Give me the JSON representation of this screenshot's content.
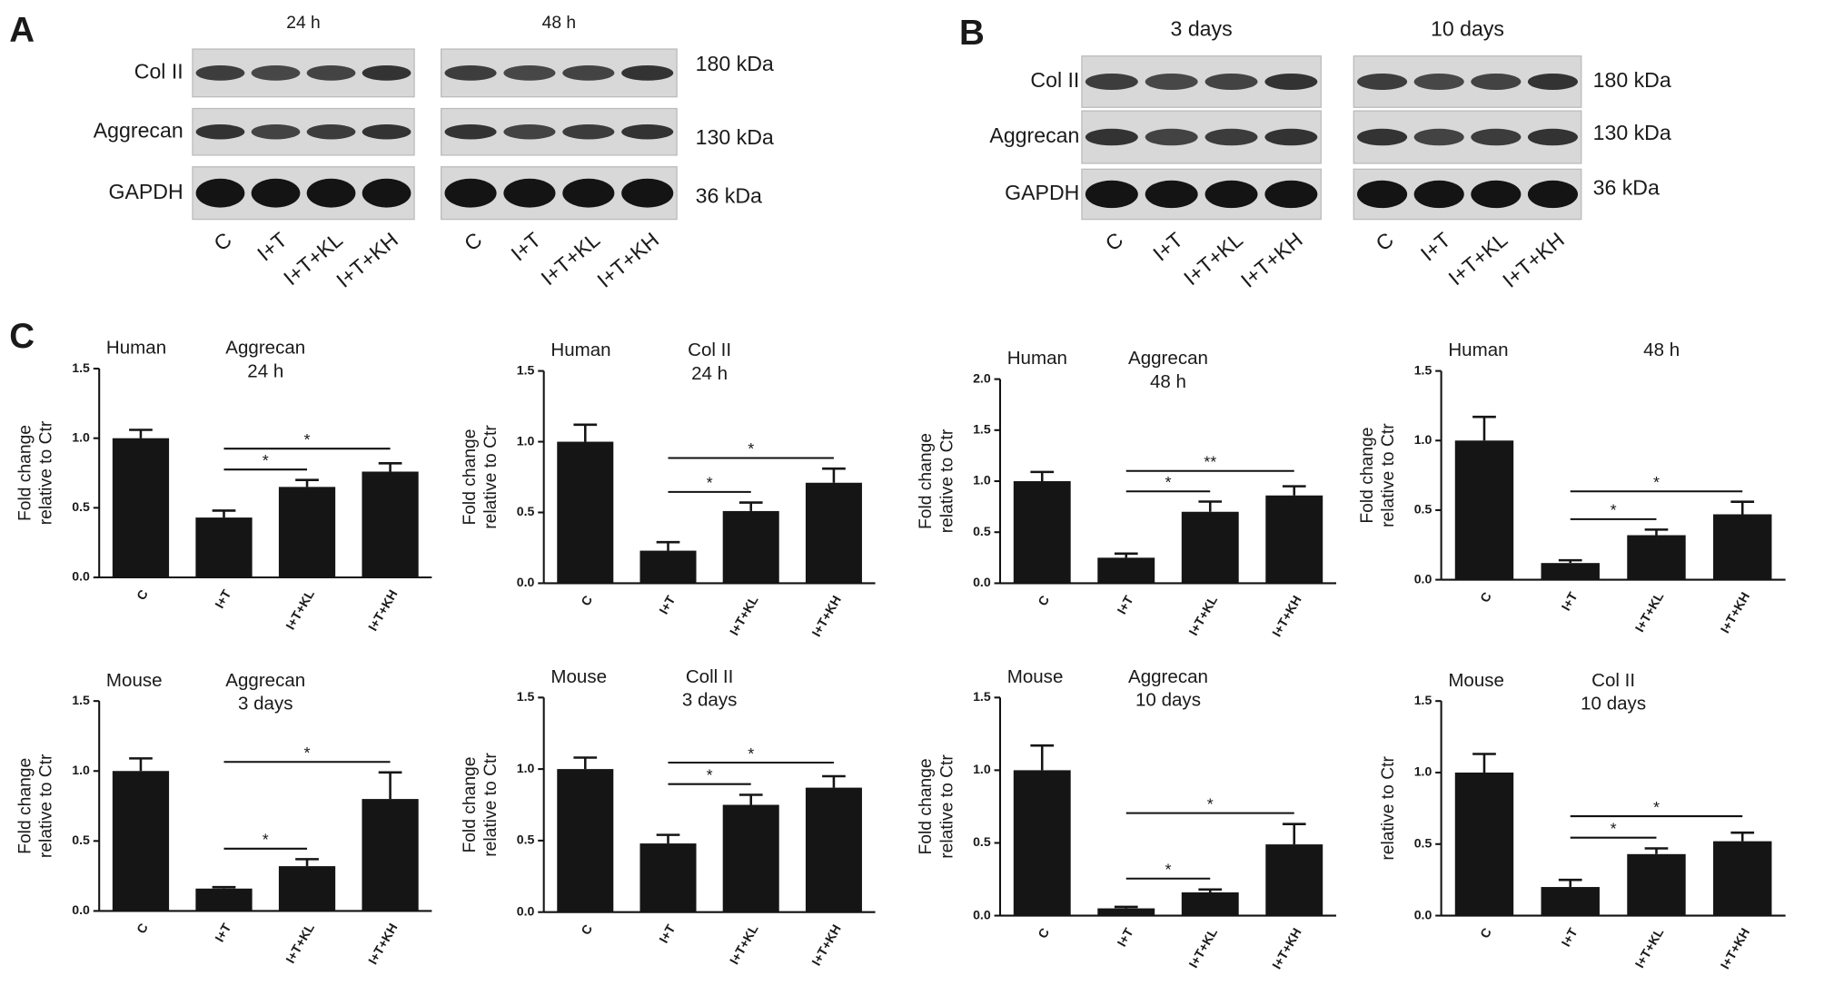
{
  "blots": [
    {
      "label": "A",
      "rows": [
        "Col II",
        "Aggrecan",
        "GAPDH"
      ],
      "sizes": [
        "180 kDa",
        "130 kDa",
        "36 kDa"
      ],
      "groups": [
        {
          "title": "24 h",
          "lanes": [
            "C",
            "I+T",
            "I+T+KL",
            "I+T+KH"
          ]
        },
        {
          "title": "48 h",
          "lanes": [
            "C",
            "I+T",
            "I+T+KL",
            "I+T+KH"
          ]
        }
      ]
    },
    {
      "label": "B",
      "rows": [
        "Col II",
        "Aggrecan",
        "GAPDH"
      ],
      "sizes": [
        "180 kDa",
        "130 kDa",
        "36 kDa"
      ],
      "groups": [
        {
          "title": "3 days",
          "lanes": [
            "C",
            "I+T",
            "I+T+KL",
            "I+T+KH"
          ]
        },
        {
          "title": "10 days",
          "lanes": [
            "C",
            "I+T",
            "I+T+KL",
            "I+T+KH"
          ]
        }
      ]
    }
  ],
  "charts_label": "C",
  "chart_data": [
    {
      "type": "bar",
      "annotation": "Human",
      "title": "Aggrecan",
      "subtitle": "24 h",
      "ylabel": [
        "Fold change",
        "relative to Ctr"
      ],
      "categories": [
        "C",
        "I+T",
        "I+T+KL",
        "I+T+KH"
      ],
      "values": [
        1.0,
        0.43,
        0.65,
        0.76
      ],
      "errors": [
        0.06,
        0.05,
        0.05,
        0.06
      ],
      "color": "#151515",
      "ylim": [
        0,
        1.5
      ],
      "yticks": [
        {
          "value": 0,
          "label": "0.0"
        },
        0.5,
        {
          "value": 1,
          "label": "1.0"
        },
        1.5
      ],
      "significance": [
        {
          "text": "*",
          "between": [
            "I+T",
            "I+T+KL"
          ]
        },
        {
          "text": "*",
          "between": [
            "I+T",
            "I+T+KH"
          ]
        }
      ]
    },
    {
      "type": "bar",
      "annotation": "Human",
      "title": "Col II",
      "subtitle": "24 h",
      "ylabel": [
        "Fold change",
        "relative to Ctr"
      ],
      "categories": [
        "C",
        "I+T",
        "I+T+KL",
        "I+T+KH"
      ],
      "values": [
        1.0,
        0.23,
        0.51,
        0.71
      ],
      "errors": [
        0.12,
        0.06,
        0.06,
        0.1
      ],
      "color": "#151515",
      "ylim": [
        0,
        1.5
      ],
      "yticks": [
        {
          "value": 0,
          "label": "0.0"
        },
        0.5,
        {
          "value": 1,
          "label": "1.0"
        },
        1.5
      ],
      "significance": [
        {
          "text": "*",
          "between": [
            "I+T",
            "I+T+KL"
          ]
        },
        {
          "text": "*",
          "between": [
            "I+T",
            "I+T+KH"
          ]
        }
      ]
    },
    {
      "type": "bar",
      "annotation": "Human",
      "title": "Aggrecan",
      "subtitle": "48 h",
      "ylabel": [
        "Fold change",
        "relative to Ctr"
      ],
      "categories": [
        "C",
        "I+T",
        "I+T+KL",
        "I+T+KH"
      ],
      "values": [
        1.0,
        0.25,
        0.7,
        0.86
      ],
      "errors": [
        0.09,
        0.04,
        0.1,
        0.09
      ],
      "color": "#151515",
      "ylim": [
        0,
        2
      ],
      "yticks": [
        {
          "value": 0,
          "label": "0.0"
        },
        0.5,
        {
          "value": 1,
          "label": "1.0"
        },
        1.5,
        {
          "value": 2,
          "label": "2.0"
        }
      ],
      "significance": [
        {
          "text": "*",
          "between": [
            "I+T",
            "I+T+KL"
          ]
        },
        {
          "text": "**",
          "between": [
            "I+T",
            "I+T+KH"
          ]
        }
      ]
    },
    {
      "type": "bar",
      "annotation": "Human",
      "title": "48 h",
      "ylabel": [
        "Fold change",
        "relative to Ctr"
      ],
      "categories": [
        "C",
        "I+T",
        "I+T+KL",
        "I+T+KH"
      ],
      "values": [
        1.0,
        0.12,
        0.32,
        0.47
      ],
      "errors": [
        0.17,
        0.02,
        0.04,
        0.09
      ],
      "color": "#151515",
      "ylim": [
        0,
        1.5
      ],
      "yticks": [
        {
          "value": 0,
          "label": "0.0"
        },
        0.5,
        {
          "value": 1,
          "label": "1.0"
        },
        1.5
      ],
      "significance": [
        {
          "text": "*",
          "between": [
            "I+T",
            "I+T+KL"
          ]
        },
        {
          "text": "*",
          "between": [
            "I+T",
            "I+T+KH"
          ]
        }
      ]
    },
    {
      "type": "bar",
      "annotation": "Mouse",
      "title": "Aggrecan",
      "subtitle": "3  days",
      "ylabel": [
        "Fold change",
        "relative to Ctr"
      ],
      "categories": [
        "C",
        "I+T",
        "I+T+KL",
        "I+T+KH"
      ],
      "values": [
        1.0,
        0.16,
        0.32,
        0.8
      ],
      "errors": [
        0.09,
        0.01,
        0.05,
        0.19
      ],
      "color": "#151515",
      "ylim": [
        0,
        1.5
      ],
      "yticks": [
        {
          "value": 0,
          "label": "0.0"
        },
        0.5,
        {
          "value": 1,
          "label": "1.0"
        },
        1.5
      ],
      "significance": [
        {
          "text": "*",
          "between": [
            "I+T",
            "I+T+KL"
          ]
        },
        {
          "text": "*",
          "between": [
            "I+T",
            "I+T+KH"
          ]
        }
      ]
    },
    {
      "type": "bar",
      "annotation": "Mouse",
      "title": "Coll II",
      "subtitle": "3  days",
      "ylabel": [
        "Fold change",
        "relative to Ctr"
      ],
      "categories": [
        "C",
        "I+T",
        "I+T+KL",
        "I+T+KH"
      ],
      "values": [
        1.0,
        0.48,
        0.75,
        0.87
      ],
      "errors": [
        0.08,
        0.06,
        0.07,
        0.08
      ],
      "color": "#151515",
      "ylim": [
        0,
        1.5
      ],
      "yticks": [
        {
          "value": 0,
          "label": "0.0"
        },
        0.5,
        {
          "value": 1,
          "label": "1.0"
        },
        1.5
      ],
      "significance": [
        {
          "text": "*",
          "between": [
            "I+T",
            "I+T+KL"
          ]
        },
        {
          "text": "*",
          "between": [
            "I+T",
            "I+T+KH"
          ]
        }
      ]
    },
    {
      "type": "bar",
      "annotation": "Mouse",
      "title": "Aggrecan",
      "subtitle": "10 days",
      "ylabel": [
        "Fold change",
        "relative to Ctr"
      ],
      "categories": [
        "C",
        "I+T",
        "I+T+KL",
        "I+T+KH"
      ],
      "values": [
        1.0,
        0.05,
        0.16,
        0.49
      ],
      "errors": [
        0.17,
        0.01,
        0.02,
        0.14
      ],
      "color": "#151515",
      "ylim": [
        0,
        1.5
      ],
      "yticks": [
        {
          "value": 0,
          "label": "0.0"
        },
        0.5,
        {
          "value": 1,
          "label": "1.0"
        },
        1.5
      ],
      "significance": [
        {
          "text": "*",
          "between": [
            "I+T",
            "I+T+KL"
          ]
        },
        {
          "text": "*",
          "between": [
            "I+T",
            "I+T+KH"
          ]
        }
      ]
    },
    {
      "type": "bar",
      "annotation": "Mouse",
      "title": "Col II",
      "subtitle": "10  days",
      "ylabel": [
        "relative to Ctr"
      ],
      "categories": [
        "C",
        "I+T",
        "I+T+KL",
        "I+T+KH"
      ],
      "values": [
        1.0,
        0.2,
        0.43,
        0.52
      ],
      "errors": [
        0.13,
        0.05,
        0.04,
        0.06
      ],
      "color": "#151515",
      "ylim": [
        0,
        1.5
      ],
      "yticks": [
        {
          "value": 0,
          "label": "0.0"
        },
        0.5,
        {
          "value": 1,
          "label": "1.0"
        },
        1.5
      ],
      "significance": [
        {
          "text": "*",
          "between": [
            "I+T",
            "I+T+KL"
          ]
        },
        {
          "text": "*",
          "between": [
            "I+T",
            "I+T+KH"
          ]
        }
      ]
    }
  ]
}
